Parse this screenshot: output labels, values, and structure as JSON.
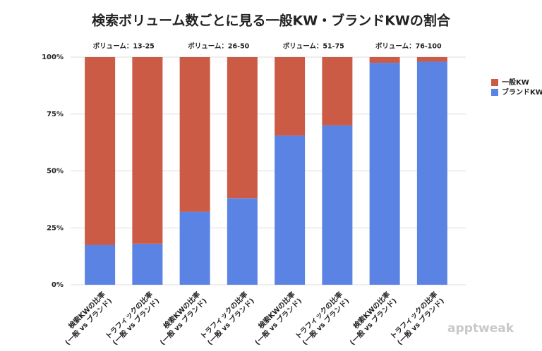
{
  "chart_data": {
    "type": "stacked_bar",
    "title": "検索ボリューム数ごとに見る一般KW・ブランドKWの割合",
    "groups": [
      "ボリューム：13-25",
      "ボリューム：26-50",
      "ボリューム：51-75",
      "ボリューム：76-100"
    ],
    "categories": [
      [
        "検索KWの比率",
        "(一般 vs ブランド)"
      ],
      [
        "トラフィックの比率",
        "(一般 vs ブランド)"
      ],
      [
        "検索KWの比率",
        "(一般 vs ブランド)"
      ],
      [
        "トラフィックの比率",
        "(一般 vs ブランド)"
      ],
      [
        "検索KWの比率",
        "(一般 vs ブランド)"
      ],
      [
        "トラフィックの比率",
        "(一般 vs ブランド)"
      ],
      [
        "検索KWの比率",
        "(一般 vs ブランド)"
      ],
      [
        "トラフィックの比率",
        "(一般 vs ブランド)"
      ]
    ],
    "series": [
      {
        "name": "一般KW",
        "color": "#cc5b45",
        "values": [
          82.5,
          82,
          68,
          62,
          34.5,
          30,
          2.5,
          2
        ]
      },
      {
        "name": "ブランドKW",
        "color": "#5b83e4",
        "values": [
          17.5,
          18,
          32,
          38,
          65.5,
          70,
          97.5,
          98
        ]
      }
    ],
    "ylim": [
      0,
      100
    ],
    "yticks": [
      {
        "value": 0,
        "label": "0%"
      },
      {
        "value": 25,
        "label": "25%"
      },
      {
        "value": 50,
        "label": "50%"
      },
      {
        "value": 75,
        "label": "75%"
      },
      {
        "value": 100,
        "label": "100%"
      }
    ],
    "grid": true,
    "legend": "right",
    "watermark": "apptweak"
  }
}
